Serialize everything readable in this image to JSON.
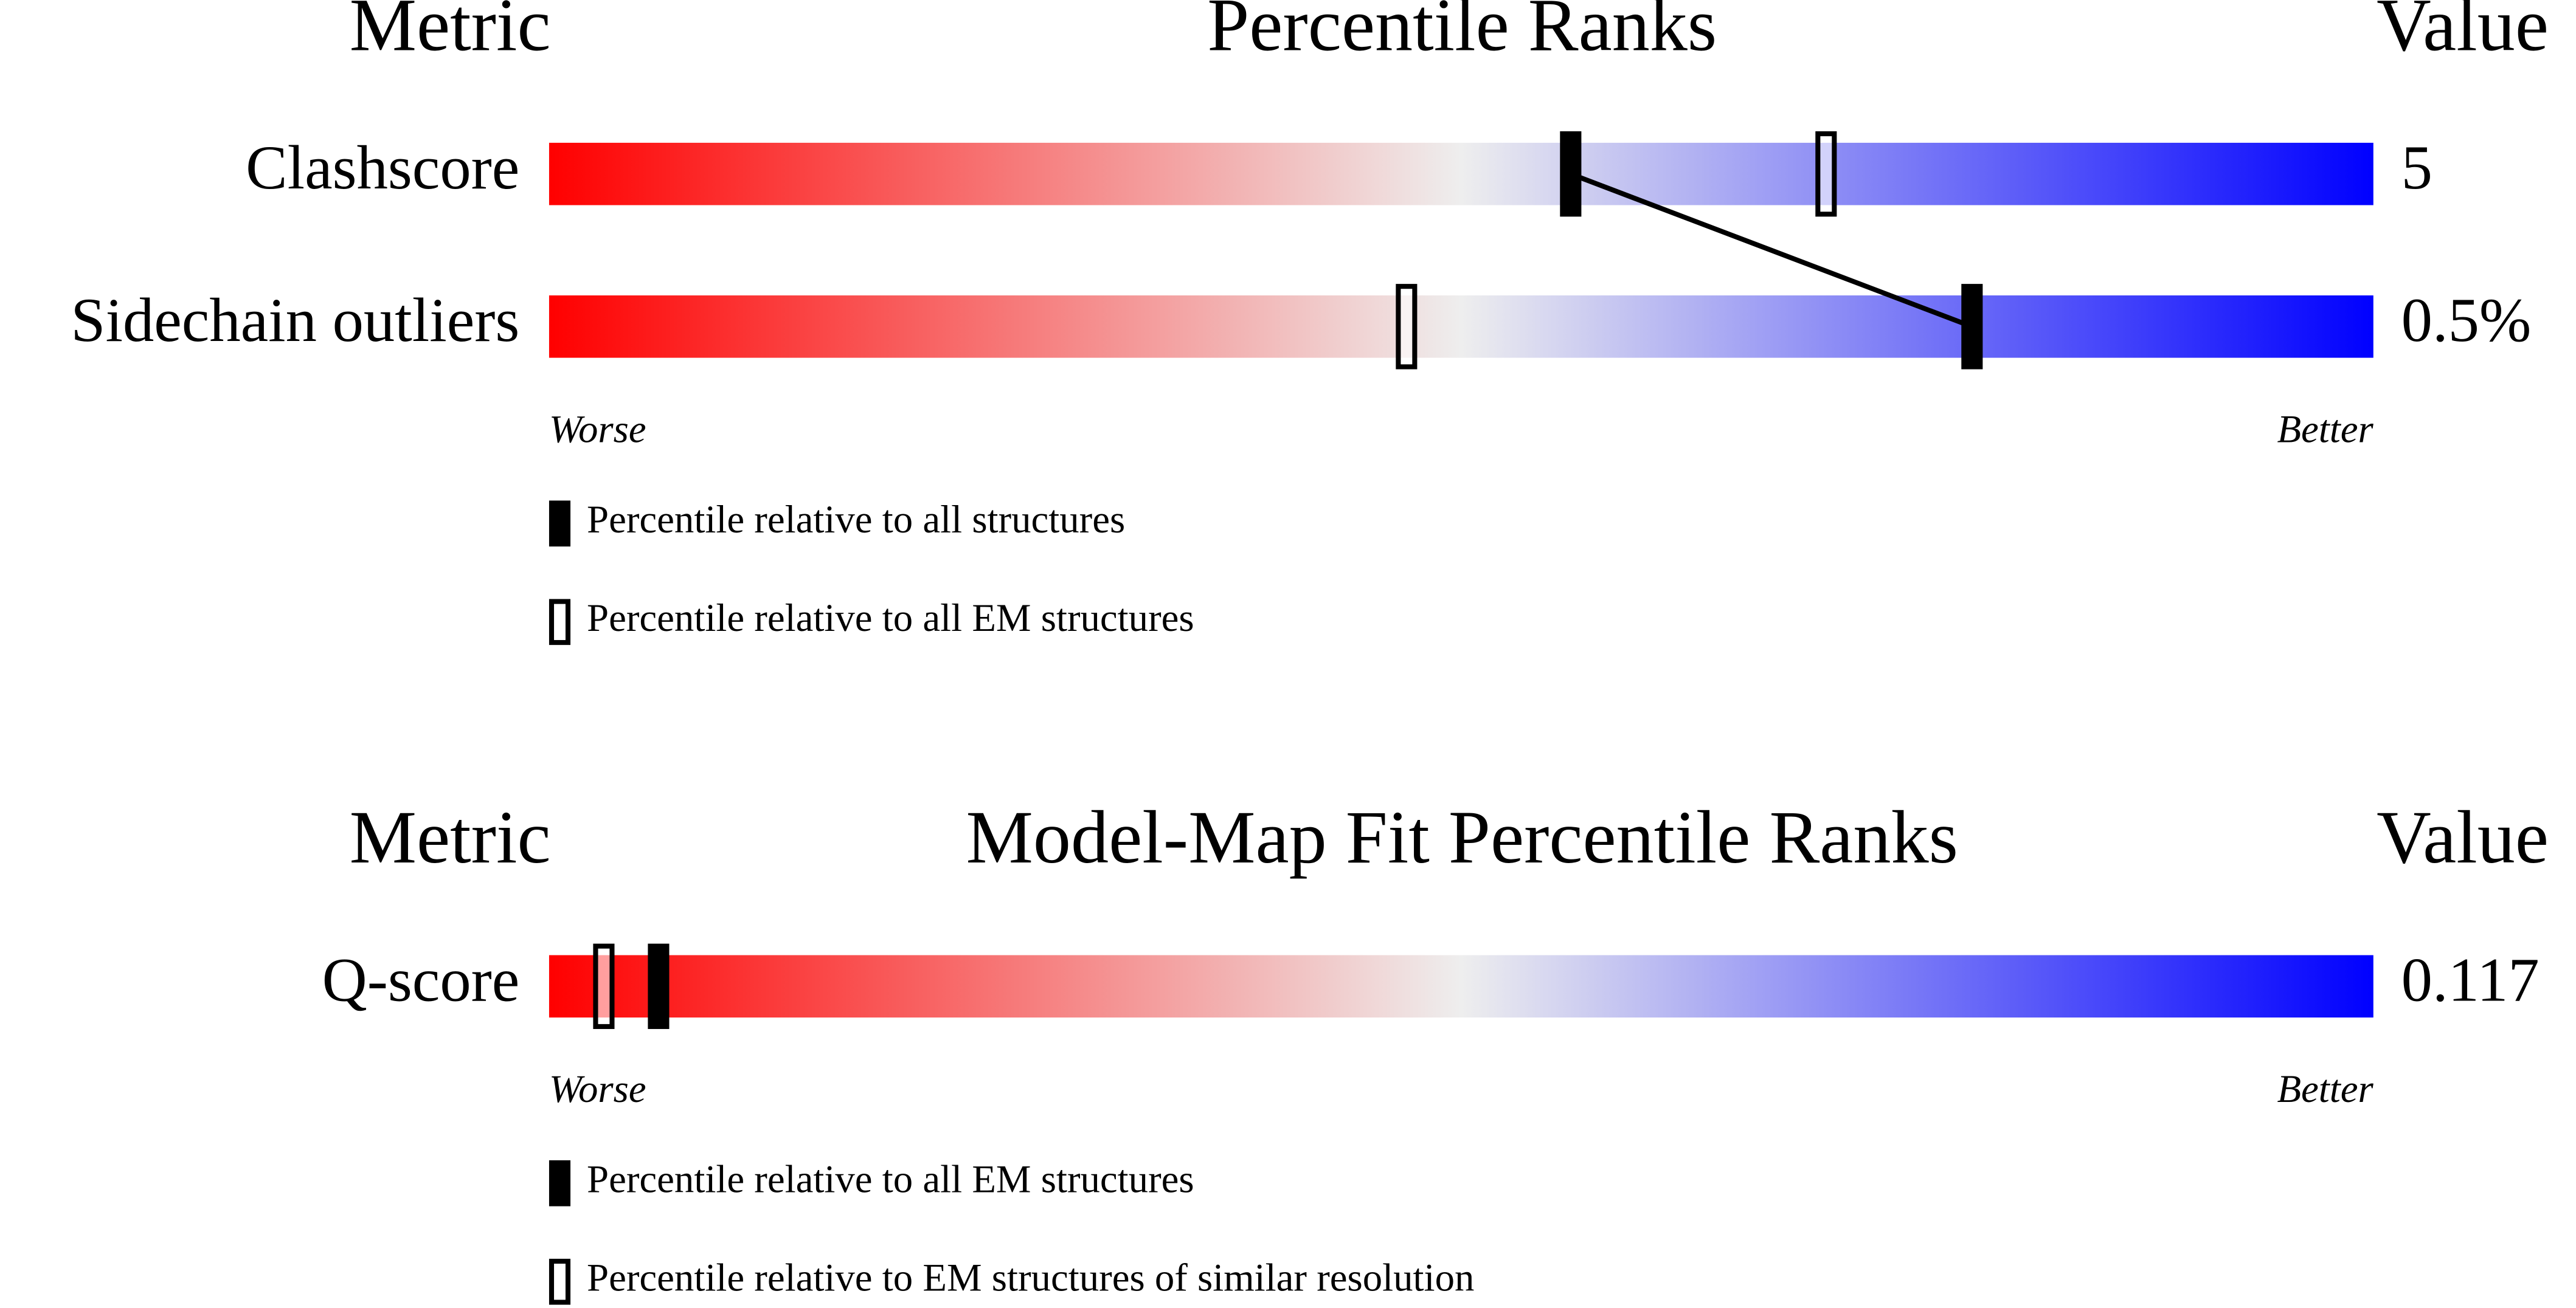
{
  "chart_data": [
    {
      "type": "percentile-slider",
      "metric_header": "Metric",
      "title": "Percentile Ranks",
      "value_header": "Value",
      "categories": [
        "Clashscore",
        "Sidechain outliers"
      ],
      "metric_values": [
        5,
        {
          "value": 0.5,
          "label": "0.5%"
        }
      ],
      "xlim": [
        0,
        100
      ],
      "x_labels": [
        "Worse",
        "Better"
      ],
      "gradient": [
        "#ff0000",
        "#eeeeee",
        "#0000ff"
      ],
      "series": [
        {
          "name": "Percentile relative to all structures",
          "marker": "filled",
          "connect": true,
          "values": [
            56,
            78
          ]
        },
        {
          "name": "Percentile relative to all EM structures",
          "marker": "hollow",
          "connect": false,
          "values": [
            70,
            47
          ]
        }
      ]
    },
    {
      "type": "percentile-slider",
      "metric_header": "Metric",
      "title": "Model-Map Fit Percentile Ranks",
      "value_header": "Value",
      "categories": [
        "Q-score"
      ],
      "metric_values": [
        0.117
      ],
      "xlim": [
        0,
        100
      ],
      "x_labels": [
        "Worse",
        "Better"
      ],
      "gradient": [
        "#ff0000",
        "#eeeeee",
        "#0000ff"
      ],
      "series": [
        {
          "name": "Percentile relative to all EM structures",
          "marker": "filled",
          "connect": false,
          "values": [
            6
          ]
        },
        {
          "name": "Percentile relative to EM structures of similar resolution",
          "marker": "hollow",
          "connect": false,
          "values": [
            3
          ]
        }
      ]
    }
  ]
}
